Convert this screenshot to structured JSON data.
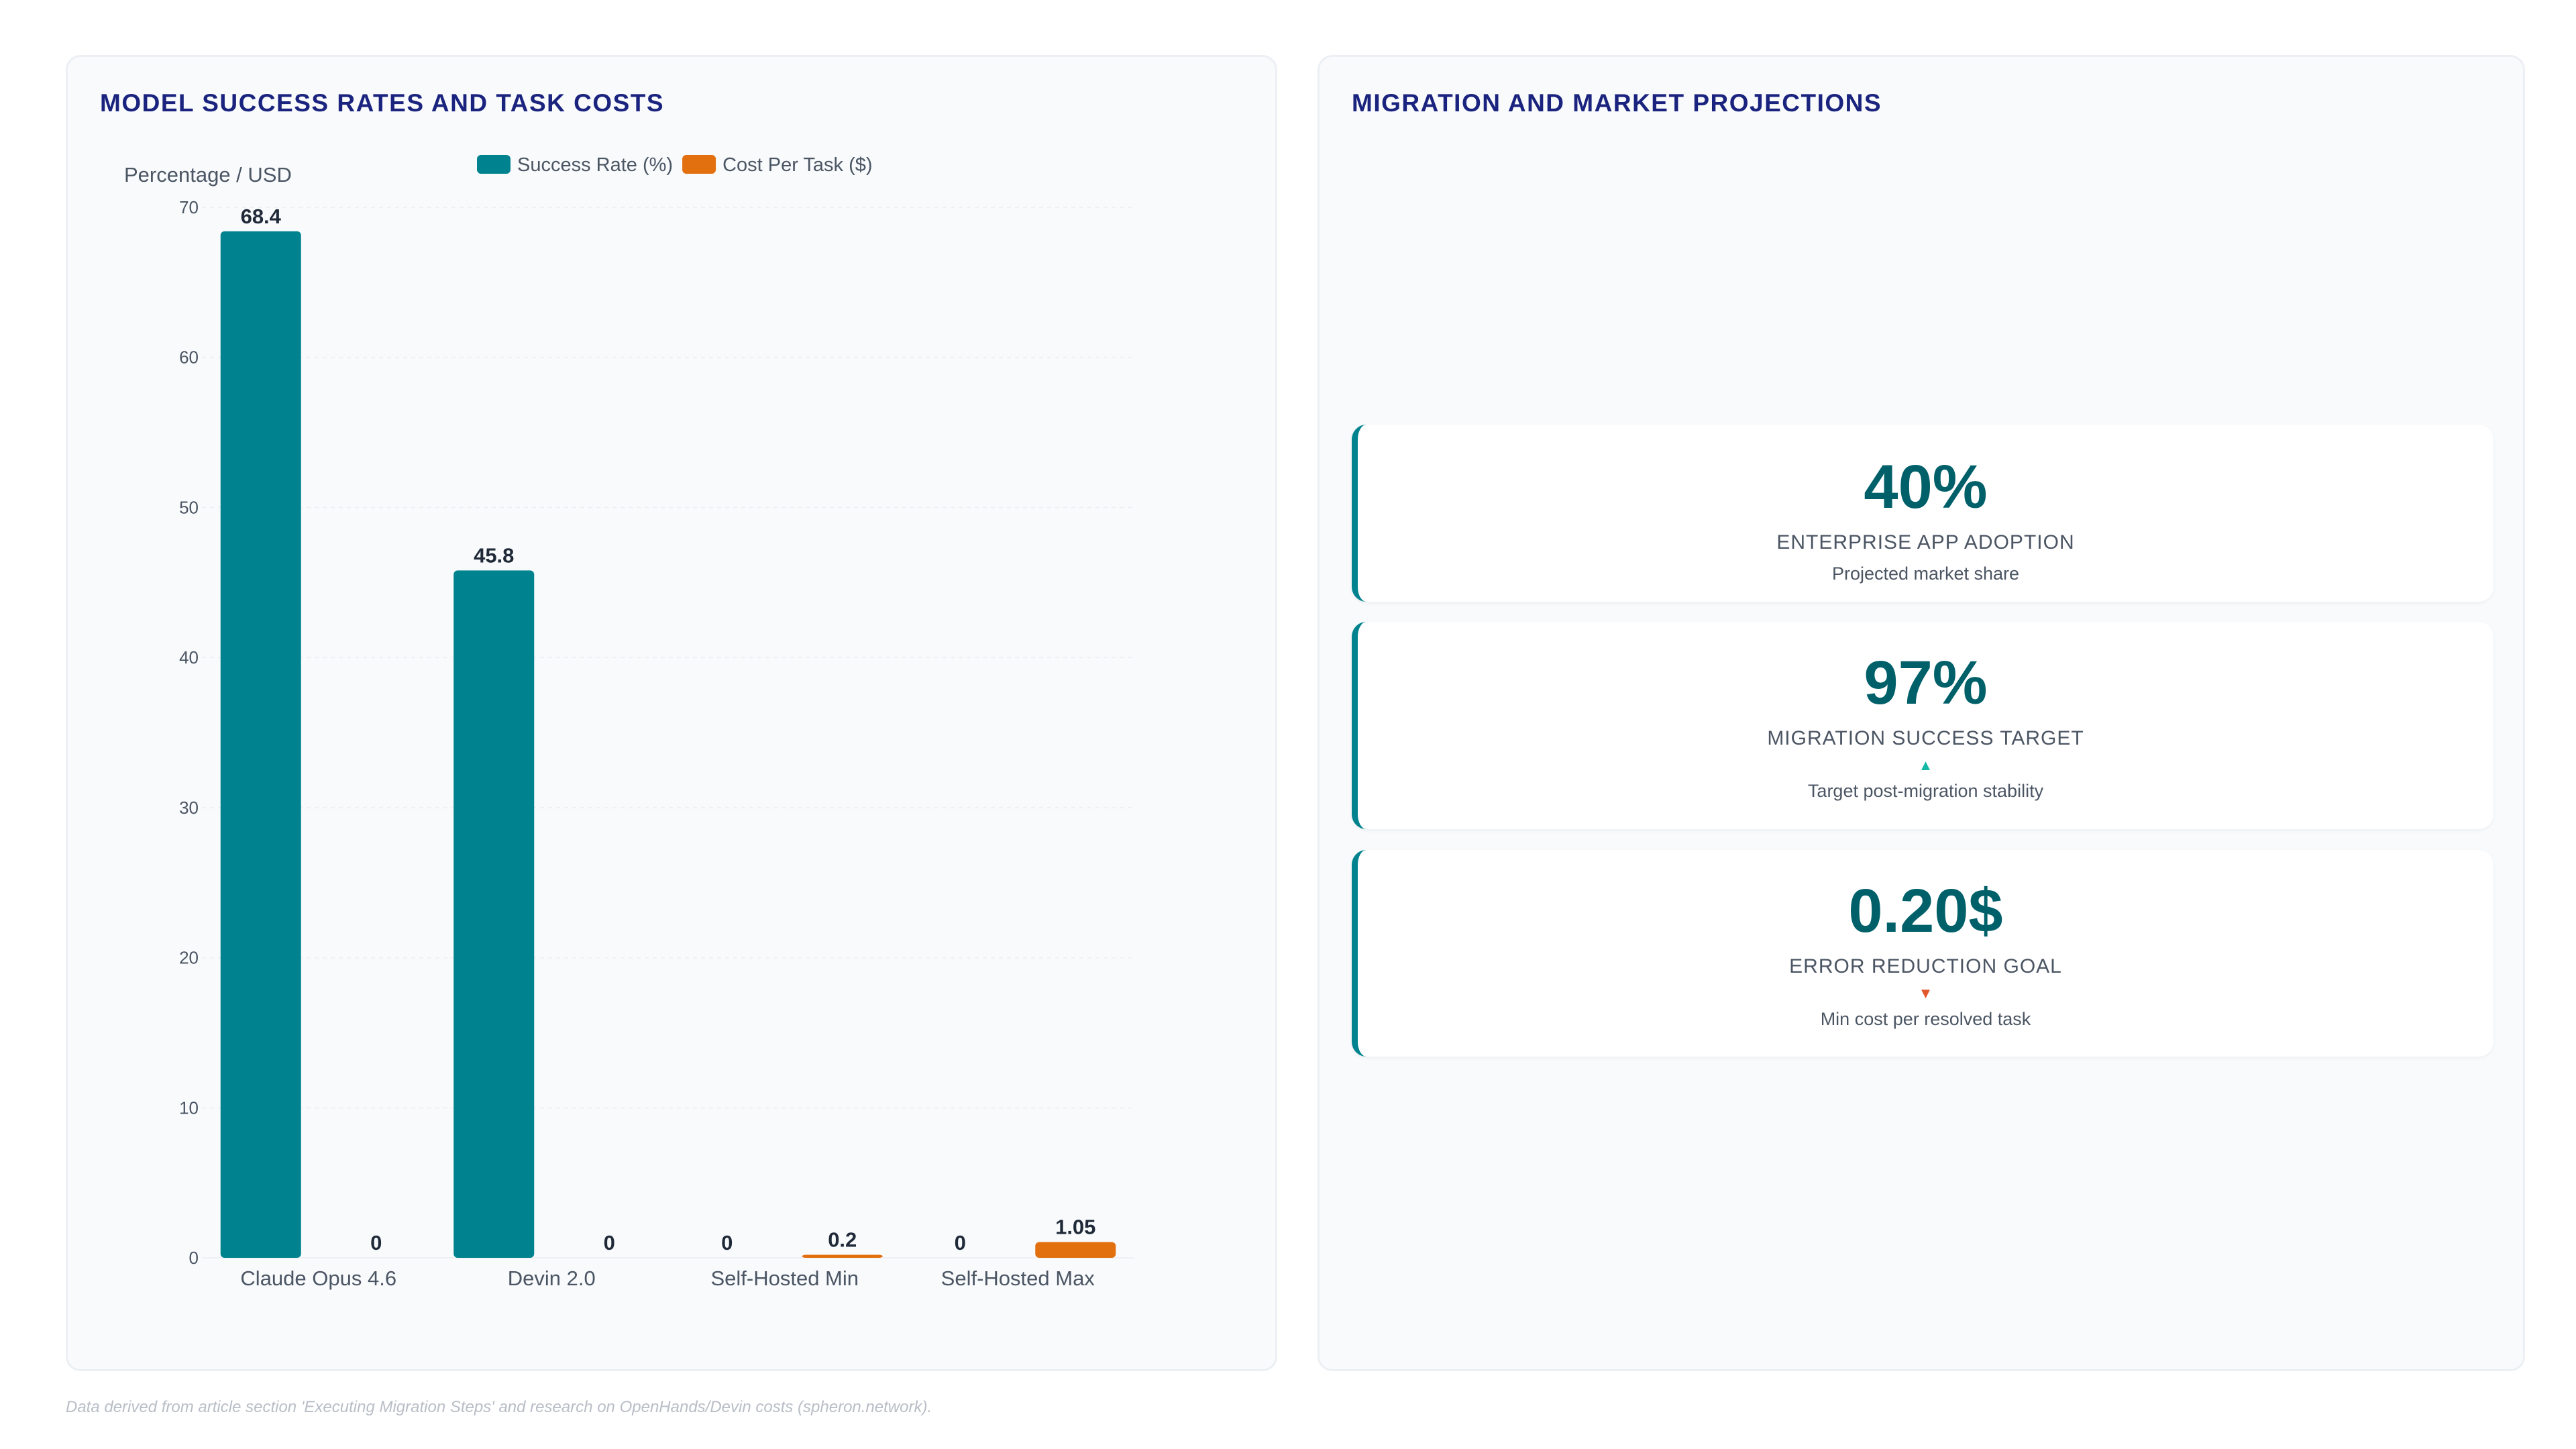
{
  "left_panel": {
    "title": "MODEL SUCCESS RATES AND TASK COSTS"
  },
  "right_panel": {
    "title": "MIGRATION AND MARKET PROJECTIONS",
    "kpis": [
      {
        "value": "40%",
        "label": "ENTERPRISE APP ADOPTION",
        "arrow": "",
        "sub": "Projected market share"
      },
      {
        "value": "97%",
        "label": "MIGRATION SUCCESS TARGET",
        "arrow": "▲",
        "sub": "Target post-migration stability"
      },
      {
        "value": "0.20$",
        "label": "ERROR REDUCTION GOAL",
        "arrow": "▼",
        "sub": "Min cost per resolved task"
      }
    ]
  },
  "footnote": "Data derived from article section 'Executing Migration Steps' and research on OpenHands/Devin costs (spheron.network).",
  "colors": {
    "success": "#00838f",
    "cost": "#e3700f",
    "accent_up": "#14b8a6",
    "accent_down": "#e2572c"
  },
  "chart_data": {
    "type": "bar",
    "title": "MODEL SUCCESS RATES AND TASK COSTS",
    "ylabel": "Percentage / USD",
    "xlabel": "",
    "ylim": [
      0,
      70
    ],
    "yticks": [
      0,
      10,
      20,
      30,
      40,
      50,
      60,
      70
    ],
    "grid": true,
    "legend_position": "top",
    "categories": [
      "Claude Opus 4.6",
      "Devin 2.0",
      "Self-Hosted Min",
      "Self-Hosted Max"
    ],
    "series": [
      {
        "name": "Success Rate (%)",
        "values": [
          68.4,
          45.8,
          0,
          0
        ]
      },
      {
        "name": "Cost Per Task ($)",
        "values": [
          0,
          0,
          0.2,
          1.05
        ]
      }
    ]
  }
}
